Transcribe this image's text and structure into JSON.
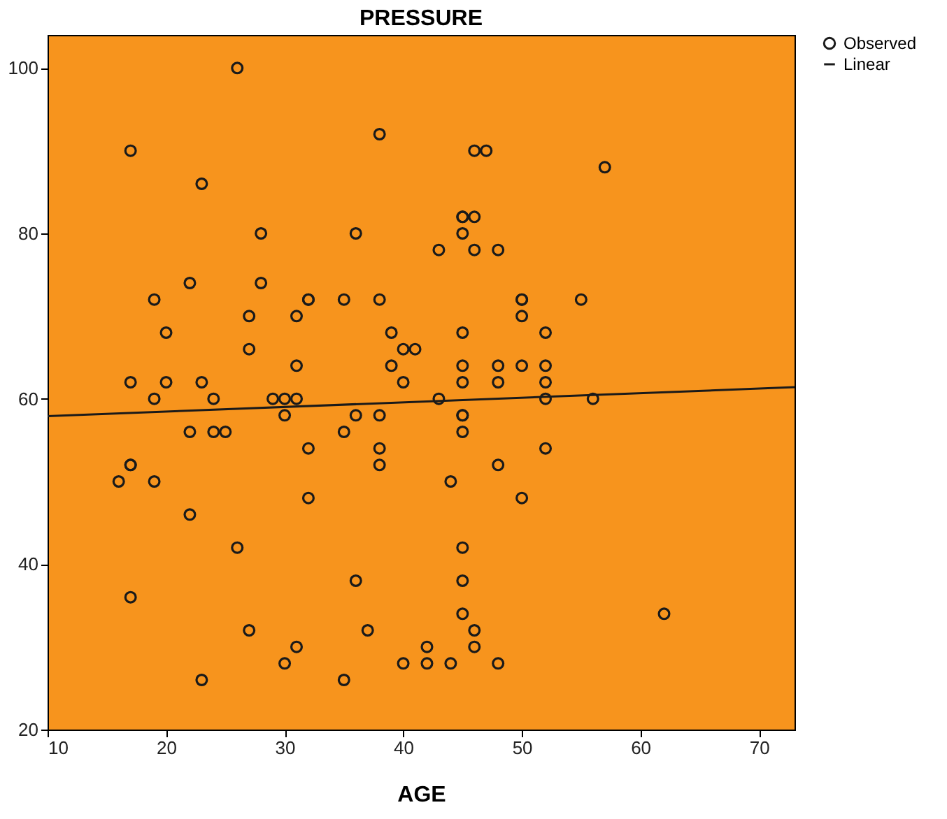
{
  "chart_data": {
    "type": "scatter",
    "title": "PRESSURE",
    "xlabel": "AGE",
    "xlim": [
      10,
      73
    ],
    "xticks": [
      10,
      20,
      30,
      40,
      50,
      60,
      70
    ],
    "ylim": [
      20,
      104
    ],
    "yticks": [
      20,
      40,
      60,
      80,
      100
    ],
    "grid": false,
    "legend": "top right",
    "marker": "circle",
    "series": [
      {
        "name": "Observed",
        "color": "#1a1a1a",
        "x": [
          16,
          17,
          17,
          17,
          17,
          17,
          19,
          19,
          19,
          20,
          20,
          22,
          22,
          22,
          23,
          23,
          23,
          24,
          24,
          25,
          26,
          26,
          27,
          27,
          27,
          28,
          28,
          29,
          30,
          30,
          30,
          31,
          31,
          31,
          31,
          32,
          32,
          32,
          32,
          35,
          35,
          35,
          36,
          36,
          36,
          37,
          38,
          38,
          38,
          38,
          38,
          39,
          39,
          40,
          40,
          40,
          41,
          42,
          42,
          43,
          43,
          44,
          44,
          45,
          45,
          45,
          45,
          45,
          45,
          45,
          45,
          45,
          45,
          45,
          45,
          46,
          46,
          46,
          46,
          46,
          47,
          48,
          48,
          48,
          48,
          48,
          50,
          50,
          50,
          50,
          50,
          52,
          52,
          52,
          52,
          52,
          55,
          56,
          57,
          62
        ],
        "values": [
          50,
          90,
          62,
          52,
          52,
          36,
          72,
          60,
          50,
          68,
          62,
          74,
          56,
          46,
          86,
          62,
          26,
          60,
          56,
          56,
          100,
          42,
          70,
          66,
          32,
          80,
          74,
          60,
          60,
          58,
          28,
          70,
          64,
          60,
          30,
          72,
          72,
          54,
          48,
          72,
          56,
          26,
          80,
          58,
          38,
          32,
          92,
          72,
          58,
          54,
          52,
          68,
          64,
          66,
          62,
          28,
          66,
          30,
          28,
          78,
          60,
          50,
          28,
          82,
          82,
          80,
          68,
          64,
          62,
          58,
          58,
          56,
          42,
          38,
          34,
          90,
          82,
          78,
          32,
          30,
          90,
          78,
          64,
          62,
          52,
          28,
          72,
          72,
          70,
          64,
          48,
          68,
          64,
          62,
          60,
          54,
          72,
          60,
          88,
          34
        ]
      },
      {
        "name": "Linear",
        "type": "line",
        "color": "#1a1a1a",
        "line_style": "solid",
        "marker": "none",
        "x": [
          10,
          73
        ],
        "values": [
          57.9,
          61.4
        ]
      }
    ]
  }
}
